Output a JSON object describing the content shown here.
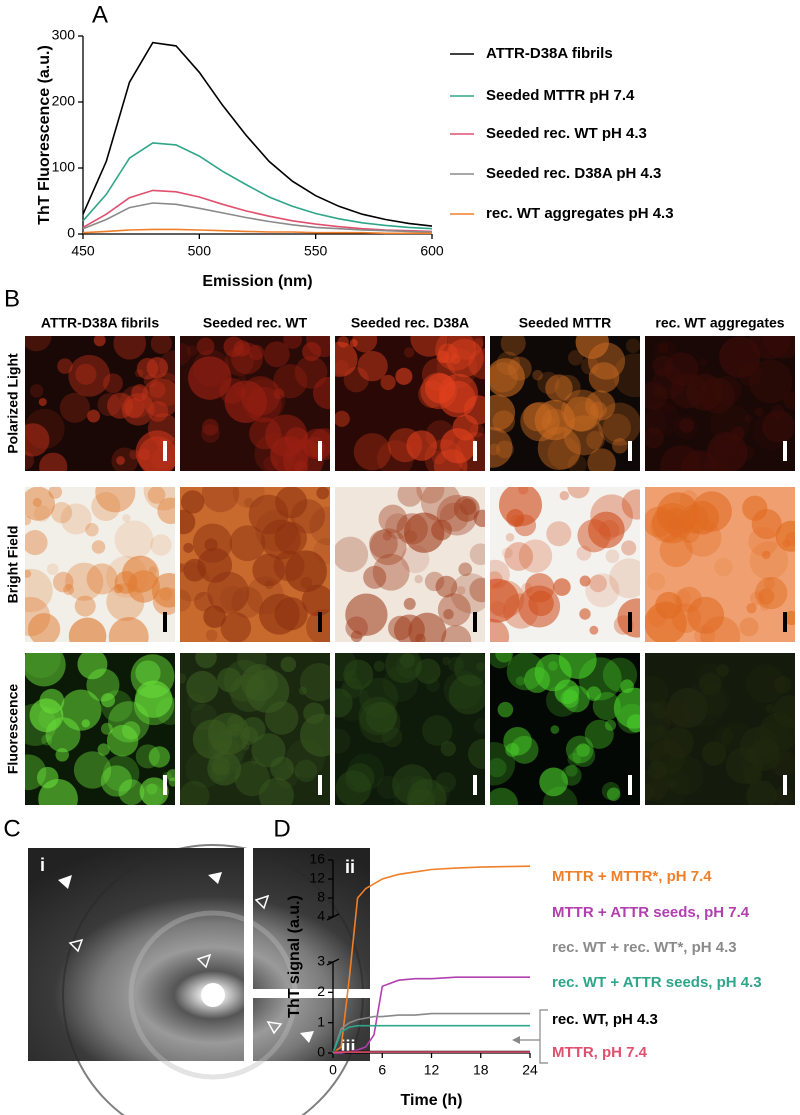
{
  "panel_labels": {
    "a": "A",
    "b": "B",
    "c": "C",
    "d": "D"
  },
  "chart_data": [
    {
      "type": "line",
      "x_label": "Emission (nm)",
      "y_label": "ThT Fluorescence (a.u.)",
      "x": [
        450,
        460,
        470,
        480,
        490,
        500,
        510,
        520,
        530,
        540,
        550,
        560,
        570,
        580,
        590,
        600
      ],
      "xlim": [
        450,
        600
      ],
      "xticks": [
        450,
        500,
        550,
        600
      ],
      "ylim": [
        0,
        300
      ],
      "yticks": [
        0,
        100,
        200,
        300
      ],
      "legend": "right",
      "series": [
        {
          "name": "ATTR-D38A fibrils",
          "color": "#000000",
          "values": [
            30,
            110,
            230,
            290,
            285,
            245,
            195,
            150,
            110,
            80,
            58,
            42,
            30,
            22,
            16,
            12
          ]
        },
        {
          "name": "Seeded MTTR pH 7.4",
          "color": "#2fa58a",
          "values": [
            20,
            60,
            115,
            138,
            135,
            118,
            95,
            75,
            56,
            42,
            31,
            23,
            17,
            13,
            10,
            8
          ]
        },
        {
          "name": "Seeded rec. WT pH 4.3",
          "color": "#e0506e",
          "values": [
            10,
            30,
            55,
            66,
            64,
            56,
            45,
            35,
            27,
            20,
            15,
            11,
            8,
            6,
            5,
            4
          ]
        },
        {
          "name": "Seeded rec. D38A pH 4.3",
          "color": "#8a8a8a",
          "values": [
            8,
            22,
            40,
            47,
            45,
            39,
            32,
            25,
            19,
            14,
            10,
            8,
            6,
            5,
            4,
            3
          ]
        },
        {
          "name": "rec. WT aggregates pH 4.3",
          "color": "#f07f2a",
          "values": [
            2,
            4,
            6,
            7,
            7,
            6,
            5,
            4,
            3,
            3,
            2,
            2,
            2,
            1,
            1,
            1
          ]
        }
      ]
    },
    {
      "type": "line",
      "x_label": "Time (h)",
      "y_label": "ThT signal (a.u.)",
      "x": [
        0,
        1,
        2,
        3,
        4,
        5,
        6,
        8,
        10,
        12,
        15,
        18,
        21,
        24
      ],
      "xlim": [
        0,
        24
      ],
      "xticks": [
        0,
        6,
        12,
        18,
        24
      ],
      "ylim": [
        0,
        16
      ],
      "y_break": [
        3,
        4
      ],
      "yticks": [
        0,
        1,
        2,
        3,
        4,
        8,
        12,
        16
      ],
      "legend": "right",
      "series": [
        {
          "name": "MTTR + MTTR*, pH 7.4",
          "color": "#f07f2a",
          "values": [
            0,
            0.2,
            2.5,
            8,
            10,
            11,
            12,
            13,
            13.5,
            14,
            14.3,
            14.5,
            14.6,
            14.7
          ]
        },
        {
          "name": "MTTR + ATTR seeds, pH 7.4",
          "color": "#b23fb0",
          "values": [
            0,
            0,
            0.05,
            0.1,
            0.2,
            0.6,
            2.2,
            2.4,
            2.45,
            2.45,
            2.5,
            2.5,
            2.5,
            2.5
          ]
        },
        {
          "name": "rec. WT + rec. WT*, pH 4.3",
          "color": "#8a8a8a",
          "values": [
            0,
            0.8,
            1,
            1.1,
            1.15,
            1.2,
            1.2,
            1.25,
            1.25,
            1.3,
            1.3,
            1.3,
            1.3,
            1.3
          ]
        },
        {
          "name": "rec. WT + ATTR seeds, pH 4.3",
          "color": "#2fa58a",
          "values": [
            0,
            0.7,
            0.85,
            0.9,
            0.9,
            0.9,
            0.9,
            0.9,
            0.9,
            0.9,
            0.9,
            0.9,
            0.9,
            0.9
          ]
        },
        {
          "name": "rec. WT, pH 4.3",
          "color": "#000000",
          "values": [
            0.05,
            0.05,
            0.05,
            0.05,
            0.05,
            0.05,
            0.05,
            0.05,
            0.05,
            0.05,
            0.05,
            0.05,
            0.05,
            0.05
          ]
        },
        {
          "name": "MTTR, pH 7.4",
          "color": "#e0506e",
          "values": [
            0.03,
            0.03,
            0.03,
            0.03,
            0.03,
            0.03,
            0.03,
            0.03,
            0.03,
            0.03,
            0.03,
            0.03,
            0.03,
            0.03
          ]
        }
      ]
    }
  ],
  "microscopy": {
    "columns": [
      "ATTR-D38A fibrils",
      "Seeded rec. WT",
      "Seeded rec. D38A",
      "Seeded MTTR",
      "rec. WT aggregates"
    ],
    "rows": [
      "Polarized Light",
      "Bright Field",
      "Fluorescence"
    ]
  },
  "diffraction": {
    "quadrants": [
      "i",
      "ii",
      "iii"
    ]
  }
}
